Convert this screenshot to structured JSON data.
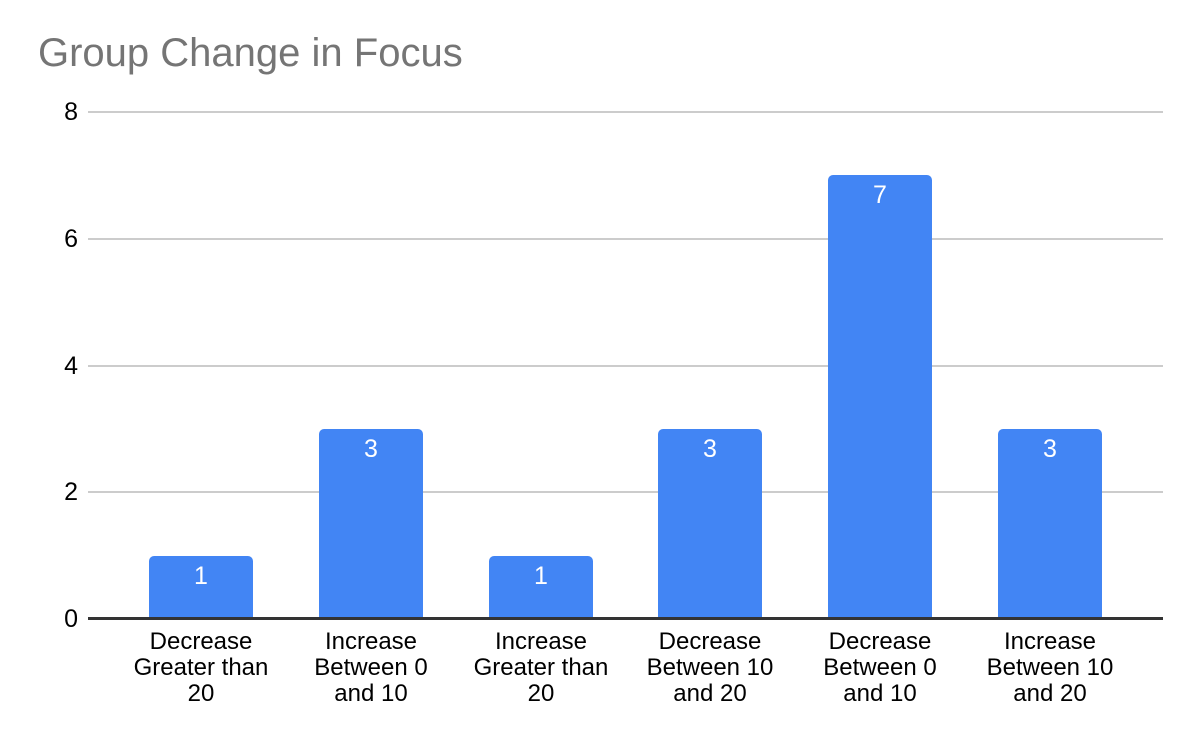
{
  "chart_data": {
    "type": "bar",
    "title": "Group Change in Focus",
    "categories": [
      "Decrease Greater than 20",
      "Increase Between 0 and 10",
      "Increase Greater than 20",
      "Decrease Between 10 and 20",
      "Decrease Between 0 and 10",
      "Increase Between 10 and 20"
    ],
    "category_lines": [
      [
        "Decrease",
        "Greater than",
        "20"
      ],
      [
        "Increase",
        "Between 0",
        "and 10"
      ],
      [
        "Increase",
        "Greater than",
        "20"
      ],
      [
        "Decrease",
        "Between 10",
        "and 20"
      ],
      [
        "Decrease",
        "Between 0",
        "and 10"
      ],
      [
        "Increase",
        "Between 10",
        "and 20"
      ]
    ],
    "values": [
      1,
      3,
      1,
      3,
      7,
      3
    ],
    "bar_labels": [
      "1",
      "3",
      "1",
      "3",
      "7",
      "3"
    ],
    "xlabel": "",
    "ylabel": "",
    "ylim": [
      0,
      8
    ],
    "yticks": [
      0,
      2,
      4,
      6,
      8
    ],
    "grid": true,
    "legend": "none",
    "colors": {
      "bar": "#4285f4",
      "bar_label_text": "#ffffff",
      "title_text": "#757575",
      "axis_text": "#000000",
      "gridline": "#cccccc",
      "baseline": "#333333",
      "background": "#ffffff"
    }
  }
}
